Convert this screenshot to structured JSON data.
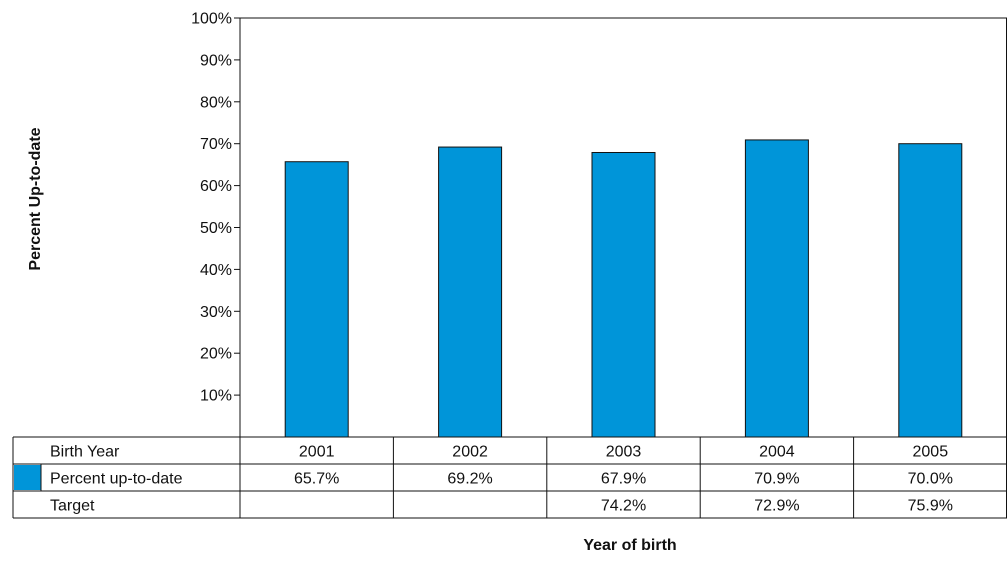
{
  "chart_data": {
    "type": "bar",
    "ylabel": "Percent Up-to-date",
    "xlabel": "Year of birth",
    "ylim": [
      0,
      100
    ],
    "yticks": [
      "10%",
      "20%",
      "30%",
      "40%",
      "50%",
      "60%",
      "70%",
      "80%",
      "90%",
      "100%"
    ],
    "grid": false,
    "categories": [
      "2001",
      "2002",
      "2003",
      "2004",
      "2005"
    ],
    "series": [
      {
        "name": "Percent up-to-date",
        "values": [
          65.7,
          69.2,
          67.9,
          70.9,
          70.0
        ],
        "color": "#0095d9"
      }
    ],
    "table": {
      "header_label": "Birth Year",
      "rows": [
        {
          "label": "Percent up-to-date",
          "legend_swatch": true,
          "cells": [
            "65.7%",
            "69.2%",
            "67.9%",
            "70.9%",
            "70.0%"
          ]
        },
        {
          "label": "Target",
          "legend_swatch": false,
          "cells": [
            "",
            "",
            "74.2%",
            "72.9%",
            "75.9%"
          ]
        }
      ]
    },
    "colors": {
      "bar": "#0095d9",
      "bar_stroke": "#111111",
      "line": "#111111"
    }
  }
}
